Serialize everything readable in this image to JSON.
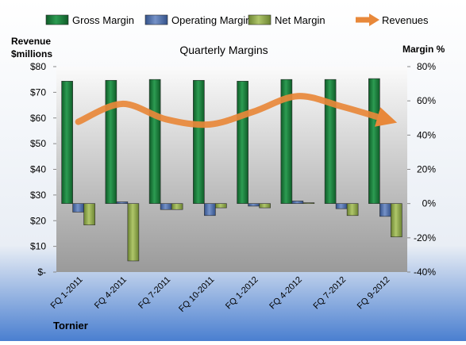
{
  "chart_data": {
    "type": "bar",
    "title": "Quarterly Margins",
    "company": "Tornier",
    "left_axis_label": [
      "Revenue",
      "$millions"
    ],
    "right_axis_label": "Margin %",
    "categories": [
      "FQ 1-2011",
      "FQ 4-2011",
      "FQ 7-2011",
      "FQ 10-2011",
      "FQ 1-2012",
      "FQ 4-2012",
      "FQ 7-2012",
      "FQ 9-2012"
    ],
    "left_ticks": [
      "$-",
      "$10",
      "$20",
      "$30",
      "$40",
      "$50",
      "$60",
      "$70",
      "$80"
    ],
    "right_ticks": [
      "-40%",
      "-20%",
      "0%",
      "20%",
      "40%",
      "60%",
      "80%"
    ],
    "left_ylim": [
      0,
      80
    ],
    "right_ylim": [
      -40,
      80
    ],
    "legend_position": "top",
    "series": [
      {
        "name": "Gross Margin",
        "kind": "bar",
        "axis": "right",
        "color": "#1E7B3C",
        "values": [
          71.5,
          72.0,
          72.5,
          72.0,
          71.5,
          72.5,
          72.5,
          73.0
        ]
      },
      {
        "name": "Operating Margin",
        "kind": "bar",
        "axis": "right",
        "color": "#4F6FA8",
        "values": [
          -5,
          1,
          -3.5,
          -7,
          -1.5,
          1.5,
          -3,
          -7.5
        ]
      },
      {
        "name": "Net Margin",
        "kind": "bar",
        "axis": "right",
        "color": "#8DA64A",
        "values": [
          -12.5,
          -33.5,
          -3.5,
          -2.5,
          -2.5,
          0.5,
          -7,
          -19.5
        ]
      },
      {
        "name": "Revenues",
        "kind": "line",
        "axis": "left",
        "color": "#E8883A",
        "values": [
          58.5,
          65.5,
          59.5,
          57.5,
          62.5,
          68.5,
          64.5,
          59.5
        ]
      }
    ]
  }
}
